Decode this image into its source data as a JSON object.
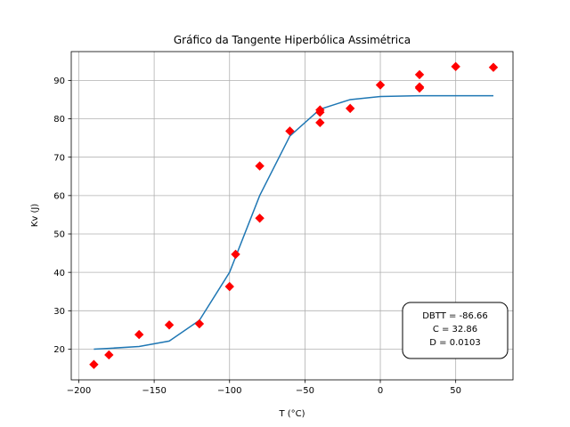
{
  "chart_data": {
    "type": "scatter",
    "title": "Gráfico da Tangente Hiperbólica Assimétrica",
    "xlabel": "T (°C)",
    "ylabel": "Kv (J)",
    "xlim": [
      -205,
      88
    ],
    "ylim": [
      12,
      97.5
    ],
    "xticks": [
      -200,
      -150,
      -100,
      -50,
      0,
      50
    ],
    "xtick_labels": [
      "−200",
      "−150",
      "−100",
      "−50",
      "0",
      "50"
    ],
    "yticks": [
      20,
      30,
      40,
      50,
      60,
      70,
      80,
      90
    ],
    "ytick_labels": [
      "20",
      "30",
      "40",
      "50",
      "60",
      "70",
      "80",
      "90"
    ],
    "grid": true,
    "series": [
      {
        "kind": "scatter",
        "marker": "diamond",
        "color": "#ff0000",
        "x": [
          -190,
          -180,
          -160,
          -140,
          -120,
          -100,
          -96,
          -80,
          -80,
          -60,
          -40,
          -40,
          -40,
          -20,
          0,
          26,
          26,
          26,
          50,
          75
        ],
        "y": [
          16,
          18.5,
          23.8,
          26.3,
          26.6,
          36.3,
          44.7,
          67.7,
          54.1,
          76.8,
          82.3,
          81.7,
          79.0,
          82.7,
          88.8,
          91.5,
          88.0,
          88.3,
          93.6,
          93.4
        ]
      },
      {
        "kind": "line",
        "color": "#1f77b4",
        "x": [
          -190,
          -180,
          -160,
          -140,
          -120,
          -100,
          -80,
          -60,
          -40,
          -20,
          0,
          25,
          50,
          75
        ],
        "y": [
          20.0,
          20.2,
          20.7,
          22.1,
          27.5,
          40.0,
          60.0,
          75.5,
          82.5,
          85.0,
          85.8,
          86.0,
          86.0,
          86.0
        ]
      }
    ],
    "annotation": {
      "lines": [
        "DBTT = -86.66",
        "C = 32.86",
        "D = 0.0103"
      ],
      "placement": "bottom-right"
    }
  }
}
